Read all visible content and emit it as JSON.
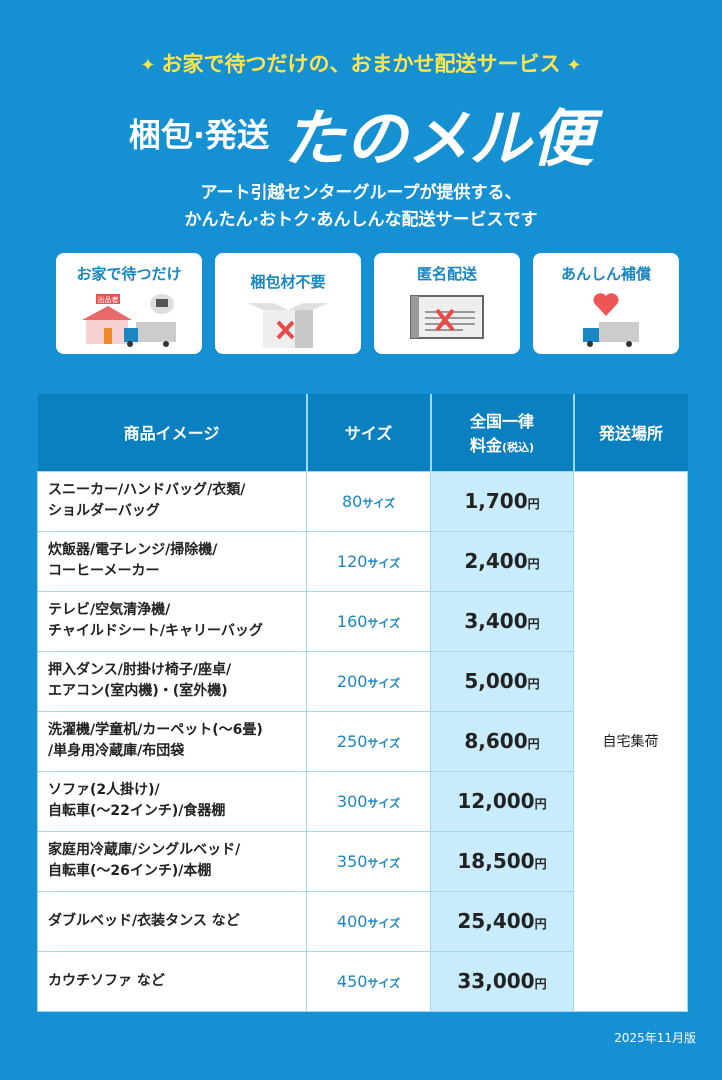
{
  "header": {
    "tagline": "お家で待つだけの、おまかせ配送サービス",
    "title_prefix": "梱包·発送",
    "title_main": "たのメル便",
    "subtitle_line1": "アート引越センターグループが提供する、",
    "subtitle_line2": "かんたん·おトク·あんしんな配送サービスです"
  },
  "features": [
    {
      "label": "お家で待つだけ",
      "icon": "house-truck-icon",
      "badge": "出品者"
    },
    {
      "label": "梱包材不要",
      "icon": "box-cross-icon"
    },
    {
      "label": "匿名配送",
      "icon": "waybill-cross-icon"
    },
    {
      "label": "あんしん補償",
      "icon": "heart-truck-icon"
    }
  ],
  "table": {
    "headers": {
      "item": "商品イメージ",
      "size": "サイズ",
      "price_line1": "全国一律",
      "price_line2": "料金",
      "price_tax": "(税込)",
      "place": "発送場所"
    },
    "size_unit": "サイズ",
    "currency": "円",
    "place": "自宅集荷",
    "rows": [
      {
        "l1": "スニーカー/ハンドバッグ/衣類/",
        "l2": "ショルダーバッグ",
        "size": "80",
        "price": "1,700"
      },
      {
        "l1": "炊飯器/電子レンジ/掃除機/",
        "l2": "コーヒーメーカー",
        "size": "120",
        "price": "2,400"
      },
      {
        "l1": "テレビ/空気清浄機/",
        "l2": "チャイルドシート/キャリーバッグ",
        "size": "160",
        "price": "3,400"
      },
      {
        "l1": "押入ダンス/肘掛け椅子/座卓/",
        "l2": "エアコン(室内機)・(室外機)",
        "size": "200",
        "price": "5,000"
      },
      {
        "l1": "洗濯機/学童机/カーペット(〜6畳)",
        "l2": "/単身用冷蔵庫/布団袋",
        "size": "250",
        "price": "8,600"
      },
      {
        "l1": "ソファ(2人掛け)/",
        "l2": "自転車(〜22インチ)/食器棚",
        "size": "300",
        "price": "12,000"
      },
      {
        "l1": "家庭用冷蔵庫/シングルベッド/",
        "l2": "自転車(〜26インチ)/本棚",
        "size": "350",
        "price": "18,500"
      },
      {
        "l1": "ダブルベッド/衣装タンス など",
        "l2": "",
        "size": "400",
        "price": "25,400"
      },
      {
        "l1": "カウチソファ など",
        "l2": "",
        "size": "450",
        "price": "33,000"
      }
    ]
  },
  "edition": "2025年11月版",
  "colors": {
    "background": "#1590d2",
    "header": "#0b80c0",
    "accent": "#ffe44d",
    "price_cell": "#c8ecfb"
  }
}
